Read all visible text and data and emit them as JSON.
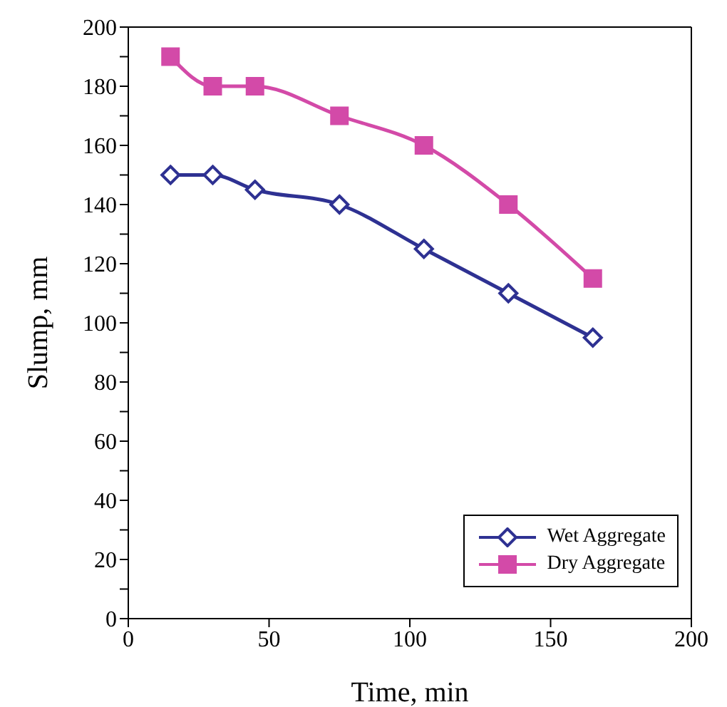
{
  "chart_data": {
    "type": "line",
    "xlabel": "Time, min",
    "ylabel": "Slump, mm",
    "x": [
      15,
      30,
      45,
      75,
      105,
      135,
      165
    ],
    "series": [
      {
        "name": "Wet Aggregate",
        "color": "#2e3192",
        "marker": "diamond",
        "values": [
          150,
          150,
          145,
          140,
          125,
          110,
          95
        ]
      },
      {
        "name": "Dry Aggregate",
        "color": "#d34aa8",
        "marker": "square",
        "values": [
          190,
          180,
          180,
          170,
          160,
          140,
          115
        ]
      }
    ],
    "xlim": [
      0,
      200
    ],
    "xticks": [
      0,
      50,
      100,
      150,
      200
    ],
    "ylim": [
      0,
      200
    ],
    "yticks": [
      0,
      {
        "value": 10,
        "label": null
      },
      20,
      {
        "value": 30,
        "label": null
      },
      40,
      {
        "value": 50,
        "label": null
      },
      60,
      {
        "value": 70,
        "label": null
      },
      80,
      {
        "value": 90,
        "label": null
      },
      100,
      {
        "value": 110,
        "label": null
      },
      120,
      {
        "value": 130,
        "label": null
      },
      140,
      {
        "value": 150,
        "label": null
      },
      160,
      {
        "value": 170,
        "label": null
      },
      180,
      {
        "value": 190,
        "label": null
      },
      200
    ],
    "grid": false,
    "legend": "bottom right"
  }
}
